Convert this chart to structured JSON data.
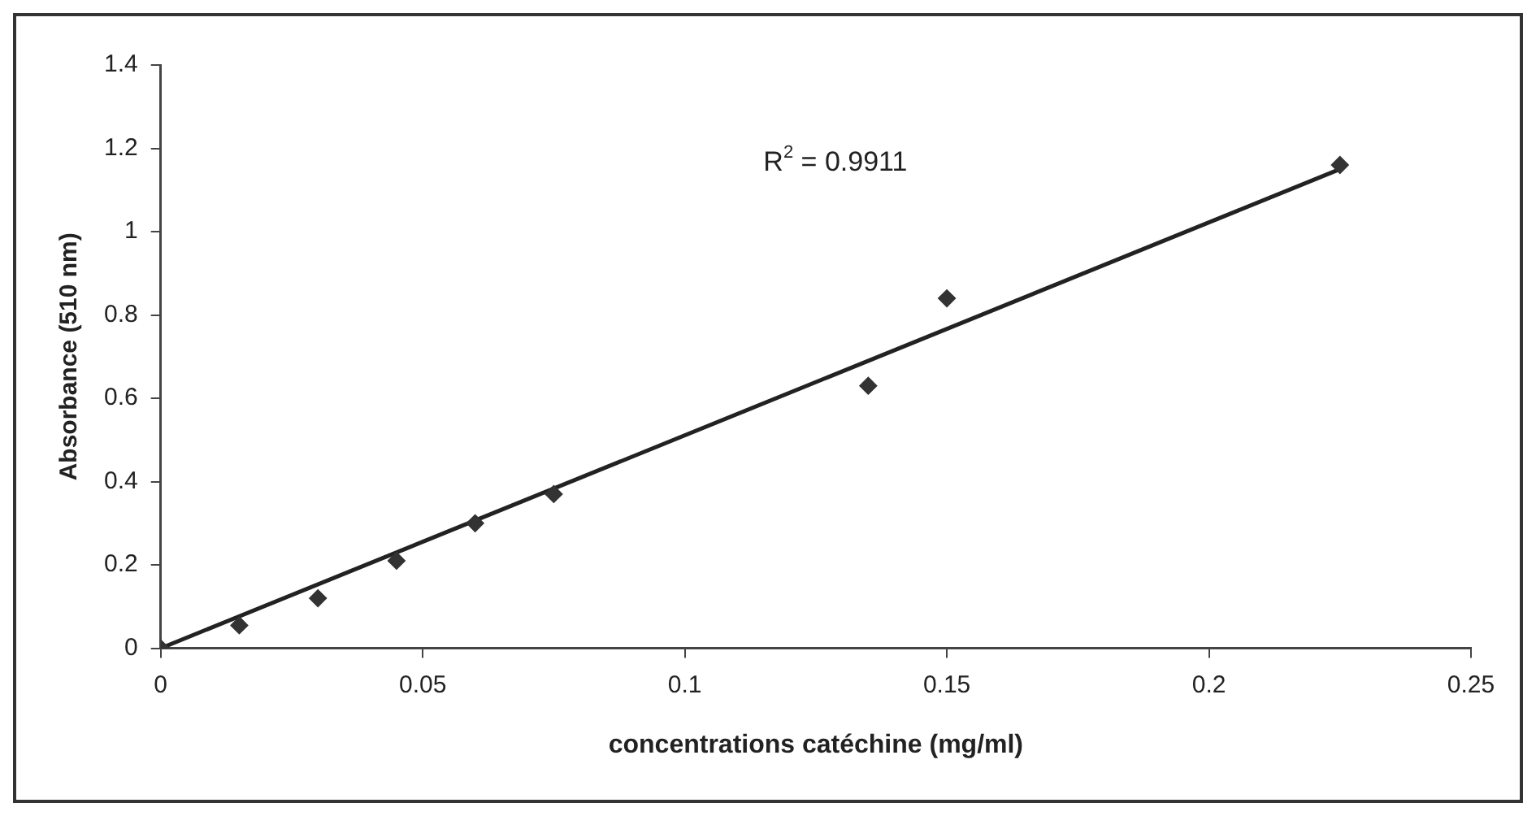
{
  "chart_data": {
    "type": "scatter",
    "xlabel": "concentrations catéchine (mg/ml)",
    "ylabel": "Absorbance (510 nm)",
    "x": [
      0,
      0.015,
      0.03,
      0.045,
      0.06,
      0.075,
      0.135,
      0.15,
      0.225
    ],
    "series": [
      {
        "marker": "diamond",
        "color": "#333333",
        "values": [
          0,
          0.055,
          0.12,
          0.21,
          0.3,
          0.37,
          0.63,
          0.84,
          1.16
        ]
      },
      {
        "type": "line",
        "marker": "none",
        "color": "#222222",
        "x": [
          0,
          0.225
        ],
        "values": [
          0,
          1.15
        ]
      }
    ],
    "annotations": [
      "R$^{2}$ = 0.9911"
    ],
    "xlim": [
      0,
      0.25
    ],
    "xticks": [
      0,
      0.05,
      0.1,
      0.15,
      0.2,
      0.25
    ],
    "ylim": [
      0,
      1.4
    ],
    "yticks": [
      0,
      0.2,
      0.4,
      0.6,
      0.8,
      1,
      1.2,
      1.4
    ],
    "grid": false,
    "legend": false
  }
}
